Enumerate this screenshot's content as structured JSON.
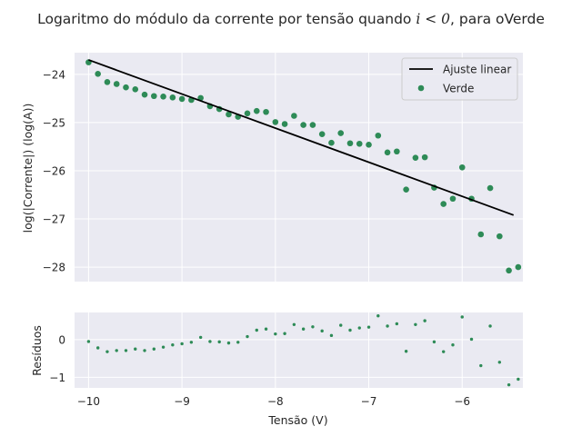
{
  "chart_data": [
    {
      "type": "scatter",
      "title": "Logaritmo do módulo da corrente por tensão quando i < 0, para oVerde",
      "title_parts": {
        "before": "Logaritmo do módulo da corrente por tensão quando ",
        "math": "i < 0",
        "after": ", para oVerde"
      },
      "ylabel": "log(|Corrente|) (log(A))",
      "xlim": [
        -10.15,
        -5.35
      ],
      "ylim": [
        -28.3,
        -23.55
      ],
      "x_ticks": [
        -10,
        -9,
        -8,
        -7,
        -6
      ],
      "y_ticks": [
        -24,
        -25,
        -26,
        -27,
        -28
      ],
      "legend_position": "upper-right",
      "legend": [
        {
          "label": "Ajuste linear",
          "kind": "line",
          "color": "#000000"
        },
        {
          "label": "Verde",
          "kind": "marker",
          "color": "#2e8b57"
        }
      ],
      "series": [
        {
          "name": "Verde",
          "kind": "scatter",
          "color": "#2e8b57",
          "x": [
            -10.0,
            -9.9,
            -9.8,
            -9.7,
            -9.6,
            -9.5,
            -9.4,
            -9.3,
            -9.2,
            -9.1,
            -9.0,
            -8.9,
            -8.8,
            -8.7,
            -8.6,
            -8.5,
            -8.4,
            -8.3,
            -8.2,
            -8.1,
            -8.0,
            -7.9,
            -7.8,
            -7.7,
            -7.6,
            -7.5,
            -7.4,
            -7.3,
            -7.2,
            -7.1,
            -7.0,
            -6.9,
            -6.8,
            -6.7,
            -6.6,
            -6.5,
            -6.4,
            -6.3,
            -6.2,
            -6.1,
            -6.0,
            -5.9,
            -5.8,
            -5.7,
            -5.6,
            -5.5,
            -5.4
          ],
          "y": [
            -23.75,
            -23.99,
            -24.16,
            -24.2,
            -24.27,
            -24.31,
            -24.42,
            -24.45,
            -24.46,
            -24.48,
            -24.51,
            -24.53,
            -24.49,
            -24.66,
            -24.72,
            -24.83,
            -24.88,
            -24.81,
            -24.76,
            -24.78,
            -24.99,
            -25.03,
            -24.86,
            -25.05,
            -25.05,
            -25.24,
            -25.42,
            -25.22,
            -25.43,
            -25.44,
            -25.46,
            -25.27,
            -25.62,
            -25.6,
            -26.39,
            -25.73,
            -25.72,
            -26.35,
            -26.69,
            -26.58,
            -25.93,
            -26.58,
            -27.32,
            -26.36,
            -27.36,
            -28.07,
            -28.0
          ]
        },
        {
          "name": "Ajuste linear",
          "kind": "line",
          "color": "#000000",
          "x": [
            -10.0,
            -5.45
          ],
          "y": [
            -23.7,
            -26.92
          ]
        }
      ]
    },
    {
      "type": "scatter",
      "xlabel": "Tensão (V)",
      "ylabel": "Resíduos",
      "xlim": [
        -10.15,
        -5.35
      ],
      "ylim": [
        -1.28,
        0.72
      ],
      "x_ticks": [
        -10,
        -9,
        -8,
        -7,
        -6
      ],
      "y_ticks": [
        0,
        -1
      ],
      "series": [
        {
          "name": "Resíduos",
          "kind": "scatter",
          "color": "#2e8b57",
          "x": [
            -10.0,
            -9.9,
            -9.8,
            -9.7,
            -9.6,
            -9.5,
            -9.4,
            -9.3,
            -9.2,
            -9.1,
            -9.0,
            -8.9,
            -8.8,
            -8.7,
            -8.6,
            -8.5,
            -8.4,
            -8.3,
            -8.2,
            -8.1,
            -8.0,
            -7.9,
            -7.8,
            -7.7,
            -7.6,
            -7.5,
            -7.4,
            -7.3,
            -7.2,
            -7.1,
            -7.0,
            -6.9,
            -6.8,
            -6.7,
            -6.6,
            -6.5,
            -6.4,
            -6.3,
            -6.2,
            -6.1,
            -6.0,
            -5.9,
            -5.8,
            -5.7,
            -5.6,
            -5.5,
            -5.4
          ],
          "y": [
            -0.05,
            -0.22,
            -0.32,
            -0.29,
            -0.29,
            -0.25,
            -0.29,
            -0.25,
            -0.2,
            -0.14,
            -0.11,
            -0.07,
            0.06,
            -0.05,
            -0.06,
            -0.09,
            -0.07,
            0.08,
            0.25,
            0.28,
            0.15,
            0.16,
            0.4,
            0.28,
            0.34,
            0.23,
            0.11,
            0.38,
            0.25,
            0.31,
            0.33,
            0.63,
            0.36,
            0.42,
            -0.31,
            0.4,
            0.5,
            -0.06,
            -0.32,
            -0.14,
            0.6,
            0.01,
            -0.69,
            0.36,
            -0.6,
            -1.2,
            -1.05
          ]
        }
      ]
    }
  ]
}
